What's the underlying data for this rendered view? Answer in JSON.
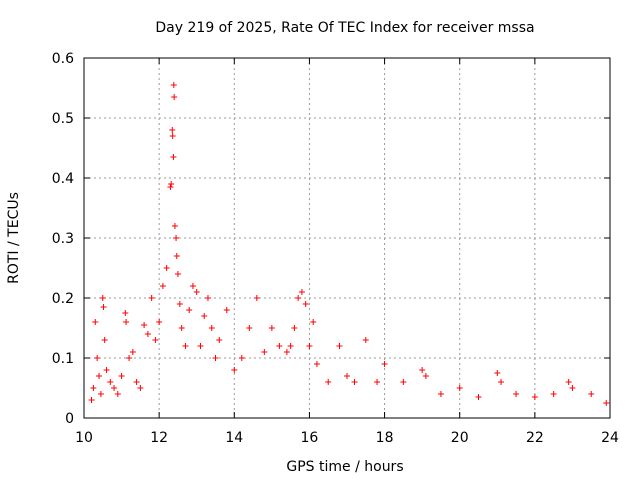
{
  "chart_data": {
    "type": "scatter",
    "title": "Day 219 of 2025, Rate Of TEC Index for receiver mssa",
    "xlabel": "GPS time / hours",
    "ylabel": "ROTI / TECUs",
    "xlim": [
      10,
      24
    ],
    "ylim": [
      0,
      0.6
    ],
    "xticks": [
      10,
      12,
      14,
      16,
      18,
      20,
      22,
      24
    ],
    "yticks": [
      0,
      0.1,
      0.2,
      0.3,
      0.4,
      0.5,
      0.6
    ],
    "xtick_labels": [
      "10",
      "12",
      "14",
      "16",
      "18",
      "20",
      "22",
      "24"
    ],
    "ytick_labels": [
      "0",
      "0.1",
      "0.2",
      "0.3",
      "0.4",
      "0.5",
      "0.6"
    ],
    "grid": true,
    "marker": "+",
    "series_color": "#ff0000",
    "series": [
      {
        "name": "ROTI",
        "points": [
          [
            10.2,
            0.03
          ],
          [
            10.25,
            0.05
          ],
          [
            10.3,
            0.16
          ],
          [
            10.35,
            0.1
          ],
          [
            10.4,
            0.07
          ],
          [
            10.45,
            0.04
          ],
          [
            10.5,
            0.2
          ],
          [
            10.52,
            0.185
          ],
          [
            10.55,
            0.13
          ],
          [
            10.6,
            0.08
          ],
          [
            10.7,
            0.06
          ],
          [
            10.8,
            0.05
          ],
          [
            10.9,
            0.04
          ],
          [
            11.0,
            0.07
          ],
          [
            11.1,
            0.175
          ],
          [
            11.12,
            0.16
          ],
          [
            11.2,
            0.1
          ],
          [
            11.3,
            0.11
          ],
          [
            11.4,
            0.06
          ],
          [
            11.5,
            0.05
          ],
          [
            11.6,
            0.155
          ],
          [
            11.7,
            0.14
          ],
          [
            11.8,
            0.2
          ],
          [
            11.9,
            0.13
          ],
          [
            12.0,
            0.16
          ],
          [
            12.1,
            0.22
          ],
          [
            12.2,
            0.25
          ],
          [
            12.3,
            0.385
          ],
          [
            12.32,
            0.39
          ],
          [
            12.35,
            0.48
          ],
          [
            12.36,
            0.47
          ],
          [
            12.38,
            0.435
          ],
          [
            12.39,
            0.555
          ],
          [
            12.4,
            0.535
          ],
          [
            12.42,
            0.32
          ],
          [
            12.45,
            0.3
          ],
          [
            12.47,
            0.27
          ],
          [
            12.5,
            0.24
          ],
          [
            12.55,
            0.19
          ],
          [
            12.6,
            0.15
          ],
          [
            12.7,
            0.12
          ],
          [
            12.8,
            0.18
          ],
          [
            12.9,
            0.22
          ],
          [
            13.0,
            0.21
          ],
          [
            13.1,
            0.12
          ],
          [
            13.2,
            0.17
          ],
          [
            13.3,
            0.2
          ],
          [
            13.4,
            0.15
          ],
          [
            13.5,
            0.1
          ],
          [
            13.6,
            0.13
          ],
          [
            13.8,
            0.18
          ],
          [
            14.0,
            0.08
          ],
          [
            14.2,
            0.1
          ],
          [
            14.4,
            0.15
          ],
          [
            14.6,
            0.2
          ],
          [
            14.8,
            0.11
          ],
          [
            15.0,
            0.15
          ],
          [
            15.2,
            0.12
          ],
          [
            15.4,
            0.11
          ],
          [
            15.5,
            0.12
          ],
          [
            15.6,
            0.15
          ],
          [
            15.7,
            0.2
          ],
          [
            15.8,
            0.21
          ],
          [
            15.9,
            0.19
          ],
          [
            16.0,
            0.12
          ],
          [
            16.1,
            0.16
          ],
          [
            16.2,
            0.09
          ],
          [
            16.5,
            0.06
          ],
          [
            16.8,
            0.12
          ],
          [
            17.0,
            0.07
          ],
          [
            17.2,
            0.06
          ],
          [
            17.5,
            0.13
          ],
          [
            17.8,
            0.06
          ],
          [
            18.0,
            0.09
          ],
          [
            18.5,
            0.06
          ],
          [
            19.0,
            0.08
          ],
          [
            19.1,
            0.07
          ],
          [
            19.5,
            0.04
          ],
          [
            20.0,
            0.05
          ],
          [
            20.5,
            0.035
          ],
          [
            21.0,
            0.075
          ],
          [
            21.1,
            0.06
          ],
          [
            21.5,
            0.04
          ],
          [
            22.0,
            0.035
          ],
          [
            22.5,
            0.04
          ],
          [
            22.9,
            0.06
          ],
          [
            23.0,
            0.05
          ],
          [
            23.5,
            0.04
          ],
          [
            23.9,
            0.025
          ]
        ]
      }
    ]
  }
}
